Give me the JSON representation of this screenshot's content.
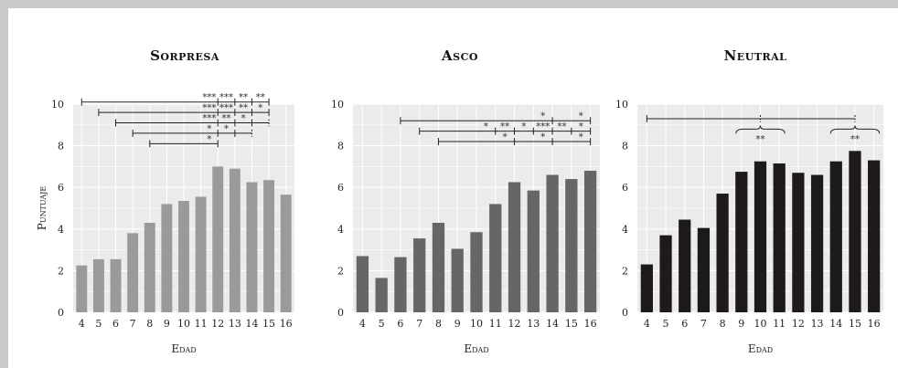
{
  "chart_data": [
    {
      "type": "bar",
      "title": "Sorpresa",
      "xlabel": "Edad",
      "ylabel": "Puntuaje",
      "categories": [
        "4",
        "5",
        "6",
        "7",
        "8",
        "9",
        "10",
        "11",
        "12",
        "13",
        "14",
        "15",
        "16"
      ],
      "values": [
        2.25,
        2.55,
        2.55,
        3.8,
        4.3,
        5.2,
        5.35,
        5.55,
        7.0,
        6.9,
        6.25,
        6.35,
        5.65
      ],
      "ylim": [
        0,
        10
      ],
      "yticks": [
        0,
        2,
        4,
        6,
        8,
        10
      ],
      "bar_color": "#9a9a9a",
      "grid": true,
      "significance": [
        {
          "from": "4",
          "ticks": [
            "12",
            "13",
            "14",
            "15"
          ],
          "labels": [
            "***",
            "***",
            "**",
            "**"
          ],
          "level": 10.1
        },
        {
          "from": "5",
          "ticks": [
            "12",
            "13",
            "14",
            "15"
          ],
          "labels": [
            "***",
            "***",
            "**",
            "*"
          ],
          "level": 9.6
        },
        {
          "from": "6",
          "ticks": [
            "12",
            "13",
            "14",
            "15"
          ],
          "labels": [
            "***",
            "**",
            "*",
            ""
          ],
          "level": 9.1
        },
        {
          "from": "7",
          "ticks": [
            "12",
            "13",
            "14"
          ],
          "labels": [
            "*",
            "*",
            ""
          ],
          "level": 8.6
        },
        {
          "from": "8",
          "ticks": [
            "12"
          ],
          "labels": [
            "*"
          ],
          "level": 8.1
        }
      ]
    },
    {
      "type": "bar",
      "title": "Asco",
      "xlabel": "Edad",
      "ylabel": "",
      "categories": [
        "4",
        "5",
        "6",
        "7",
        "8",
        "9",
        "10",
        "11",
        "12",
        "13",
        "14",
        "15",
        "16"
      ],
      "values": [
        2.7,
        1.65,
        2.65,
        3.55,
        4.3,
        3.05,
        3.85,
        5.2,
        6.25,
        5.85,
        6.6,
        6.4,
        6.8
      ],
      "ylim": [
        0,
        10
      ],
      "yticks": [
        0,
        2,
        4,
        6,
        8,
        10
      ],
      "bar_color": "#666666",
      "grid": true,
      "significance": [
        {
          "from": "6",
          "ticks": [
            "14",
            "16"
          ],
          "labels": [
            "*",
            "*"
          ],
          "level": 9.2
        },
        {
          "from": "7",
          "ticks": [
            "11",
            "12",
            "13",
            "14",
            "15",
            "16"
          ],
          "labels": [
            "*",
            "**",
            "*",
            "***",
            "**",
            "*"
          ],
          "level": 8.7
        },
        {
          "from": "8",
          "ticks": [
            "12",
            "14",
            "16"
          ],
          "labels": [
            "*",
            "*",
            "*"
          ],
          "level": 8.2
        }
      ]
    },
    {
      "type": "bar",
      "title": "Neutral",
      "xlabel": "Edad",
      "ylabel": "",
      "categories": [
        "4",
        "5",
        "6",
        "7",
        "8",
        "9",
        "10",
        "11",
        "12",
        "13",
        "14",
        "15",
        "16"
      ],
      "values": [
        2.3,
        3.7,
        4.45,
        4.05,
        5.7,
        6.75,
        7.25,
        7.15,
        6.7,
        6.6,
        7.25,
        7.75,
        7.3
      ],
      "ylim": [
        0,
        10
      ],
      "yticks": [
        0,
        2,
        4,
        6,
        8,
        10
      ],
      "bar_color": "#1e1a1b",
      "grid": true,
      "significance": [
        {
          "from": "4",
          "ticks": [
            "10",
            "15"
          ],
          "labels": [
            "",
            ""
          ],
          "level": 9.3
        },
        {
          "brace": [
            "9",
            "11"
          ],
          "label": "**",
          "level": 8.8
        },
        {
          "brace": [
            "14",
            "16"
          ],
          "label": "**",
          "level": 8.8
        }
      ]
    }
  ]
}
